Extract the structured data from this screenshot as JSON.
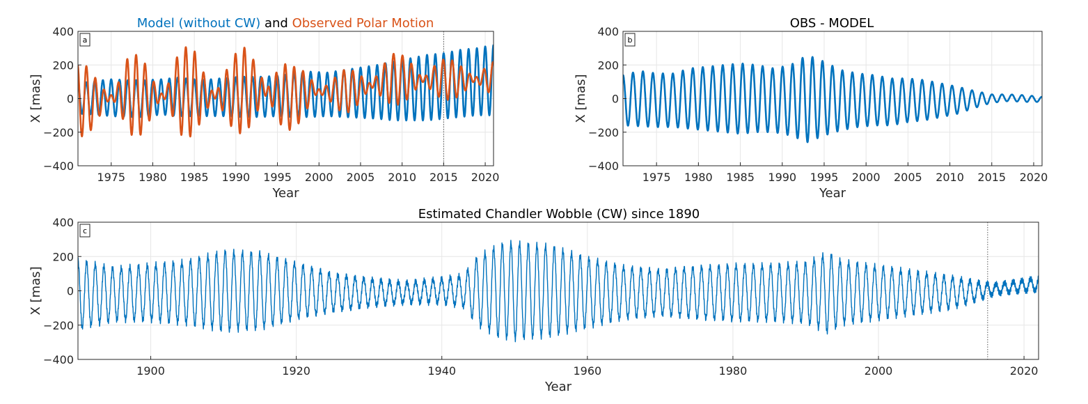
{
  "colors": {
    "model": "#0072BD",
    "observed": "#D95319",
    "obs_minus_model": "#0072BD",
    "cw": "#0072BD",
    "grid": "#e6e6e6",
    "axis": "#262626"
  },
  "chart_data": [
    {
      "id": "a",
      "type": "line",
      "panel_label": "a",
      "title_parts": {
        "model": "Model (without CW)",
        "and": " and ",
        "observed": "Observed Polar Motion"
      },
      "xlabel": "Year",
      "ylabel": "X [mas]",
      "xlim": [
        1971,
        2021
      ],
      "ylim": [
        -400,
        400
      ],
      "xticks": [
        1975,
        1980,
        1985,
        1990,
        1995,
        2000,
        2005,
        2010,
        2015,
        2020
      ],
      "yticks": [
        -400,
        -200,
        0,
        200,
        400
      ],
      "grid": true,
      "vline": 2015,
      "series": [
        {
          "name": "Model (without CW)",
          "color": "#0072BD",
          "x": [
            1971,
            1973,
            1975,
            1977,
            1979,
            1981,
            1983,
            1985,
            1987,
            1989,
            1991,
            1993,
            1995,
            1997,
            1999,
            2001,
            2003,
            2005,
            2007,
            2009,
            2011,
            2013,
            2015,
            2017,
            2019,
            2021
          ],
          "amplitude": [
            90,
            100,
            110,
            110,
            110,
            105,
            115,
            110,
            110,
            115,
            120,
            120,
            120,
            130,
            135,
            130,
            140,
            150,
            160,
            175,
            185,
            195,
            195,
            200,
            200,
            210
          ],
          "offset": [
            0,
            5,
            5,
            0,
            0,
            10,
            10,
            5,
            5,
            10,
            10,
            10,
            15,
            20,
            25,
            25,
            30,
            35,
            40,
            45,
            55,
            65,
            75,
            90,
            100,
            110
          ],
          "period_years": 1.0
        },
        {
          "name": "Observed Polar Motion",
          "color": "#D95319",
          "x": [
            1971,
            1973,
            1975,
            1977,
            1979,
            1981,
            1983,
            1985,
            1987,
            1989,
            1991,
            1993,
            1995,
            1997,
            1999,
            2001,
            2003,
            2005,
            2007,
            2009,
            2011,
            2013,
            2015,
            2017,
            2019,
            2021
          ],
          "y_max": [
            230,
            160,
            120,
            280,
            240,
            140,
            320,
            300,
            180,
            250,
            310,
            290,
            260,
            190,
            200,
            120,
            170,
            190,
            230,
            270,
            260,
            240,
            240,
            220,
            230,
            230
          ],
          "y_min": [
            -240,
            -190,
            -100,
            -230,
            -220,
            -110,
            -250,
            -220,
            -150,
            -200,
            -210,
            -180,
            -220,
            -180,
            -100,
            -40,
            -90,
            -70,
            -50,
            -40,
            -30,
            -20,
            -10,
            -5,
            0,
            10
          ]
        }
      ]
    },
    {
      "id": "b",
      "type": "line",
      "panel_label": "b",
      "title": "OBS - MODEL",
      "xlabel": "Year",
      "ylabel": "X [mas]",
      "xlim": [
        1971,
        2021
      ],
      "ylim": [
        -400,
        400
      ],
      "xticks": [
        1975,
        1980,
        1985,
        1990,
        1995,
        2000,
        2005,
        2010,
        2015,
        2020
      ],
      "yticks": [
        -400,
        -200,
        0,
        200,
        400
      ],
      "grid": true,
      "series": [
        {
          "color": "#0072BD",
          "x": [
            1971,
            1973,
            1975,
            1977,
            1979,
            1981,
            1983,
            1985,
            1987,
            1989,
            1991,
            1993,
            1995,
            1997,
            1999,
            2001,
            2003,
            2005,
            2007,
            2009,
            2011,
            2013,
            2015,
            2017,
            2019,
            2021
          ],
          "amplitude": [
            150,
            165,
            160,
            160,
            180,
            190,
            200,
            210,
            200,
            190,
            210,
            260,
            220,
            180,
            160,
            150,
            140,
            130,
            120,
            100,
            80,
            50,
            25,
            20,
            20,
            15
          ],
          "offset": [
            -10,
            0,
            -10,
            -10,
            0,
            0,
            0,
            0,
            0,
            -10,
            -10,
            0,
            0,
            -10,
            -10,
            -10,
            -20,
            -10,
            -10,
            -10,
            -10,
            -5,
            0,
            5,
            0,
            -5
          ],
          "period_years": 1.19
        }
      ]
    },
    {
      "id": "c",
      "type": "line",
      "panel_label": "c",
      "title": "Estimated Chandler Wobble (CW) since 1890",
      "xlabel": "Year",
      "ylabel": "X [mas]",
      "xlim": [
        1890,
        2022
      ],
      "ylim": [
        -400,
        400
      ],
      "xticks": [
        1900,
        1920,
        1940,
        1960,
        1980,
        2000,
        2020
      ],
      "yticks": [
        -400,
        -200,
        0,
        200,
        400
      ],
      "grid": true,
      "vline": 2015,
      "series": [
        {
          "color": "#0072BD",
          "x": [
            1890,
            1895,
            1900,
            1905,
            1910,
            1915,
            1920,
            1925,
            1930,
            1935,
            1940,
            1943,
            1945,
            1948,
            1950,
            1955,
            1960,
            1965,
            1970,
            1975,
            1980,
            1985,
            1990,
            1993,
            1995,
            2000,
            2005,
            2010,
            2014,
            2016,
            2020,
            2022
          ],
          "amplitude": [
            200,
            150,
            160,
            180,
            230,
            220,
            160,
            110,
            80,
            60,
            70,
            90,
            200,
            270,
            280,
            260,
            200,
            150,
            130,
            150,
            160,
            160,
            170,
            230,
            180,
            150,
            120,
            90,
            50,
            30,
            35,
            40
          ],
          "offset": [
            -20,
            -20,
            -10,
            -10,
            0,
            0,
            0,
            -10,
            -10,
            -10,
            0,
            0,
            0,
            0,
            0,
            0,
            -10,
            -10,
            -10,
            -10,
            -10,
            -10,
            -10,
            -10,
            -10,
            -10,
            -10,
            -10,
            0,
            10,
            30,
            40
          ],
          "period_years": 1.19
        }
      ]
    }
  ]
}
